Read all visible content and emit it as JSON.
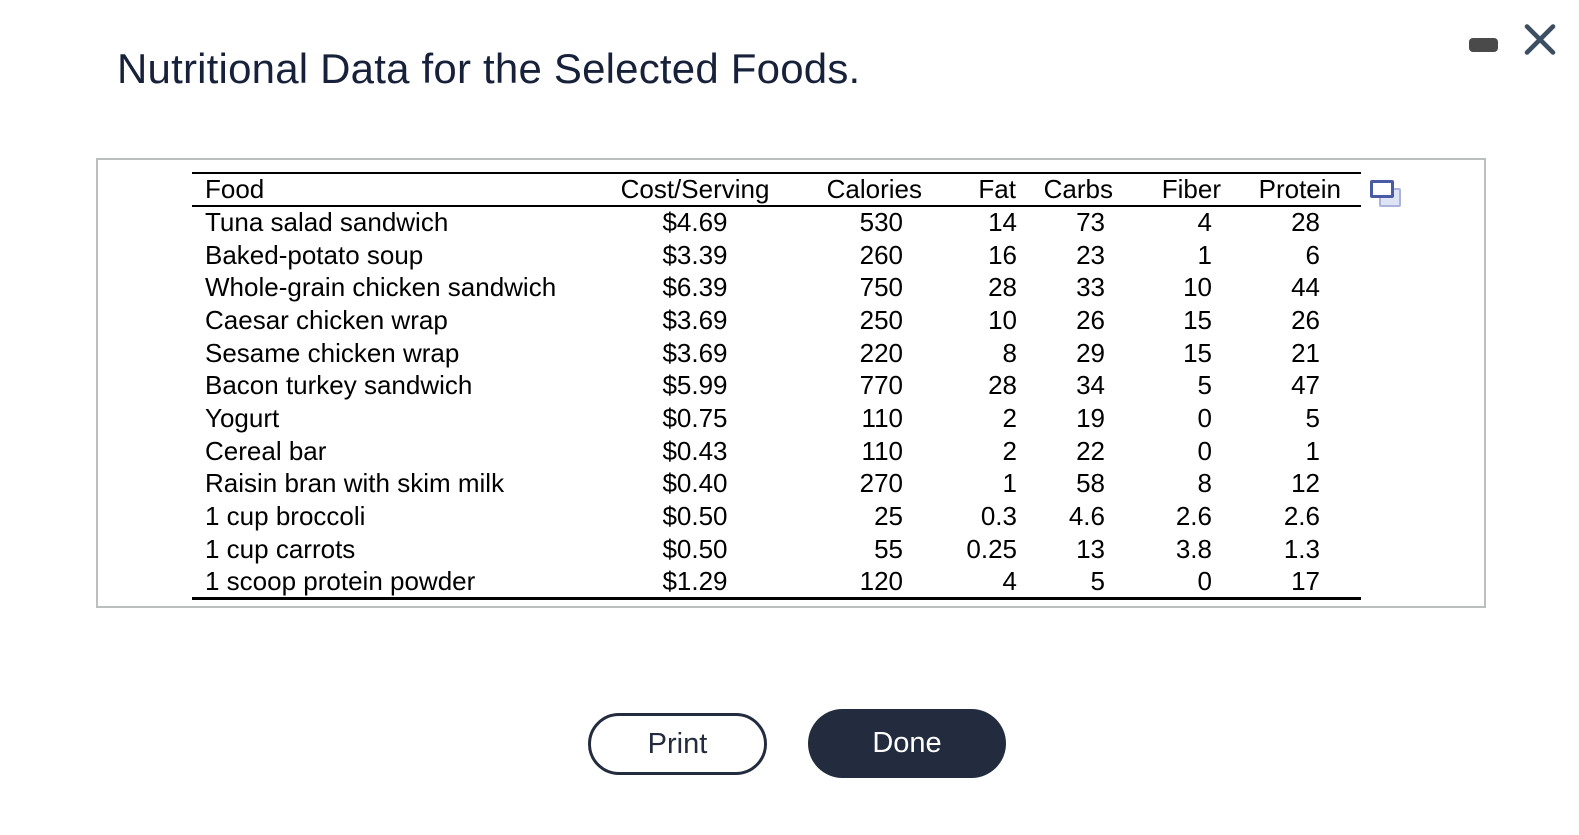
{
  "dialog": {
    "title": "Nutritional Data for the Selected Foods."
  },
  "window_controls": {
    "minimize_icon": "minus-bar",
    "close_icon": "x-mark"
  },
  "table": {
    "columns": [
      "Food",
      "Cost/Serving",
      "Calories",
      "Fat",
      "Carbs",
      "Fiber",
      "Protein"
    ],
    "column_keys": [
      "food",
      "cost-serving",
      "calories",
      "fat",
      "carbs",
      "fiber",
      "protein"
    ],
    "popout_icon": "overlapping-rectangles",
    "rows": [
      [
        "Tuna salad sandwich",
        "$4.69",
        "530",
        "14",
        "73",
        "4",
        "28"
      ],
      [
        "Baked-potato soup",
        "$3.39",
        "260",
        "16",
        "23",
        "1",
        "6"
      ],
      [
        "Whole-grain chicken sandwich",
        "$6.39",
        "750",
        "28",
        "33",
        "10",
        "44"
      ],
      [
        "Caesar chicken wrap",
        "$3.69",
        "250",
        "10",
        "26",
        "15",
        "26"
      ],
      [
        "Sesame chicken wrap",
        "$3.69",
        "220",
        "8",
        "29",
        "15",
        "21"
      ],
      [
        "Bacon turkey sandwich",
        "$5.99",
        "770",
        "28",
        "34",
        "5",
        "47"
      ],
      [
        "Yogurt",
        "$0.75",
        "110",
        "2",
        "19",
        "0",
        "5"
      ],
      [
        "Cereal bar",
        "$0.43",
        "110",
        "2",
        "22",
        "0",
        "1"
      ],
      [
        "Raisin bran with skim milk",
        "$0.40",
        "270",
        "1",
        "58",
        "8",
        "12"
      ],
      [
        "1 cup broccoli",
        "$0.50",
        "25",
        "0.3",
        "4.6",
        "2.6",
        "2.6"
      ],
      [
        "1 cup carrots",
        "$0.50",
        "55",
        "0.25",
        "13",
        "3.8",
        "1.3"
      ],
      [
        "1 scoop protein powder",
        "$1.29",
        "120",
        "4",
        "5",
        "0",
        "17"
      ]
    ]
  },
  "buttons": {
    "print": "Print",
    "done": "Done"
  },
  "colors": {
    "title_text": "#17223A",
    "button_dark": "#222C3E",
    "table_lines": "#000000",
    "panel_border": "#BCBEC0",
    "minimize_icon": "#4A4A4A",
    "close_icon": "#3E4E62",
    "popout_front": "#4A5BA6",
    "popout_back": "#A9B4DC"
  }
}
